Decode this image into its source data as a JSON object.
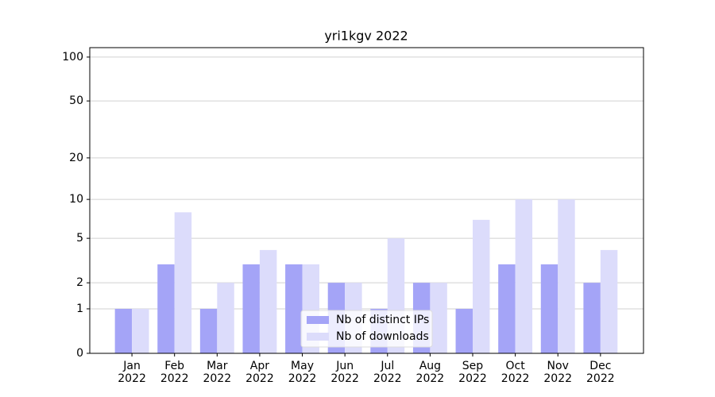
{
  "chart_data": {
    "type": "bar",
    "title": "yri1kgv 2022",
    "categories": [
      "Jan\n2022",
      "Feb\n2022",
      "Mar\n2022",
      "Apr\n2022",
      "May\n2022",
      "Jun\n2022",
      "Jul\n2022",
      "Aug\n2022",
      "Sep\n2022",
      "Oct\n2022",
      "Nov\n2022",
      "Dec\n2022"
    ],
    "series": [
      {
        "name": "Nb of distinct IPs",
        "color": "#a4a4f7",
        "values": [
          1,
          3,
          1,
          3,
          3,
          2,
          1,
          2,
          1,
          3,
          3,
          2
        ]
      },
      {
        "name": "Nb of downloads",
        "color": "#dcdcfb",
        "values": [
          1,
          8,
          2,
          4,
          3,
          2,
          5,
          2,
          7,
          10,
          10,
          4
        ]
      }
    ],
    "scale": "log1p",
    "ylim": [
      0,
      116
    ],
    "yticks": [
      0,
      1,
      2,
      5,
      10,
      20,
      50,
      100
    ],
    "grid": true,
    "legend": "lower center"
  }
}
